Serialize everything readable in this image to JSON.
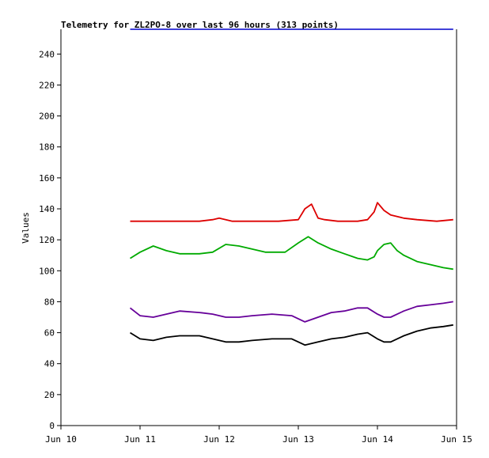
{
  "chart_data": {
    "type": "line",
    "title": "Telemetry for ZL2PO-8 over last 96 hours (313 points)",
    "xlabel": "",
    "ylabel": "Values",
    "ylim": [
      0,
      256
    ],
    "yticks": [
      0,
      20,
      40,
      60,
      80,
      100,
      120,
      140,
      160,
      180,
      200,
      220,
      240
    ],
    "xlim": [
      "2023-06-10",
      "2023-06-15"
    ],
    "xticks": [
      {
        "date": "2023-06-10",
        "label": "Jun 10"
      },
      {
        "date": "2023-06-11",
        "label": "Jun 11"
      },
      {
        "date": "2023-06-12",
        "label": "Jun 12"
      },
      {
        "date": "2023-06-13",
        "label": "Jun 13"
      },
      {
        "date": "2023-06-14",
        "label": "Jun 14"
      },
      {
        "date": "2023-06-15",
        "label": "Jun 15"
      }
    ],
    "grid": false,
    "top_line": {
      "color": "#0000cc",
      "value": 256,
      "x_start": "2023-06-10 21:00",
      "x_end": "2023-06-14 23:00"
    },
    "series": [
      {
        "color": "#dd0000",
        "points": [
          [
            "2023-06-10 21:00",
            132
          ],
          [
            "2023-06-11 00:00",
            132
          ],
          [
            "2023-06-11 06:00",
            132
          ],
          [
            "2023-06-11 12:00",
            132
          ],
          [
            "2023-06-11 18:00",
            132
          ],
          [
            "2023-06-11 22:00",
            133
          ],
          [
            "2023-06-12 00:00",
            134
          ],
          [
            "2023-06-12 04:00",
            132
          ],
          [
            "2023-06-12 12:00",
            132
          ],
          [
            "2023-06-12 18:00",
            132
          ],
          [
            "2023-06-13 00:00",
            133
          ],
          [
            "2023-06-13 02:00",
            140
          ],
          [
            "2023-06-13 04:00",
            143
          ],
          [
            "2023-06-13 06:00",
            134
          ],
          [
            "2023-06-13 08:00",
            133
          ],
          [
            "2023-06-13 12:00",
            132
          ],
          [
            "2023-06-13 18:00",
            132
          ],
          [
            "2023-06-13 21:00",
            133
          ],
          [
            "2023-06-13 23:00",
            138
          ],
          [
            "2023-06-14 00:00",
            144
          ],
          [
            "2023-06-14 02:00",
            139
          ],
          [
            "2023-06-14 04:00",
            136
          ],
          [
            "2023-06-14 08:00",
            134
          ],
          [
            "2023-06-14 12:00",
            133
          ],
          [
            "2023-06-14 18:00",
            132
          ],
          [
            "2023-06-14 23:00",
            133
          ]
        ]
      },
      {
        "color": "#00aa00",
        "points": [
          [
            "2023-06-10 21:00",
            108
          ],
          [
            "2023-06-11 00:00",
            112
          ],
          [
            "2023-06-11 04:00",
            116
          ],
          [
            "2023-06-11 08:00",
            113
          ],
          [
            "2023-06-11 12:00",
            111
          ],
          [
            "2023-06-11 18:00",
            111
          ],
          [
            "2023-06-11 22:00",
            112
          ],
          [
            "2023-06-12 02:00",
            117
          ],
          [
            "2023-06-12 06:00",
            116
          ],
          [
            "2023-06-12 10:00",
            114
          ],
          [
            "2023-06-12 14:00",
            112
          ],
          [
            "2023-06-12 20:00",
            112
          ],
          [
            "2023-06-13 00:00",
            118
          ],
          [
            "2023-06-13 03:00",
            122
          ],
          [
            "2023-06-13 06:00",
            118
          ],
          [
            "2023-06-13 10:00",
            114
          ],
          [
            "2023-06-13 14:00",
            111
          ],
          [
            "2023-06-13 18:00",
            108
          ],
          [
            "2023-06-13 21:00",
            107
          ],
          [
            "2023-06-13 23:00",
            109
          ],
          [
            "2023-06-14 00:00",
            113
          ],
          [
            "2023-06-14 02:00",
            117
          ],
          [
            "2023-06-14 04:00",
            118
          ],
          [
            "2023-06-14 06:00",
            113
          ],
          [
            "2023-06-14 08:00",
            110
          ],
          [
            "2023-06-14 12:00",
            106
          ],
          [
            "2023-06-14 16:00",
            104
          ],
          [
            "2023-06-14 20:00",
            102
          ],
          [
            "2023-06-14 23:00",
            101
          ]
        ]
      },
      {
        "color": "#660099",
        "points": [
          [
            "2023-06-10 21:00",
            76
          ],
          [
            "2023-06-11 00:00",
            71
          ],
          [
            "2023-06-11 04:00",
            70
          ],
          [
            "2023-06-11 08:00",
            72
          ],
          [
            "2023-06-11 12:00",
            74
          ],
          [
            "2023-06-11 18:00",
            73
          ],
          [
            "2023-06-11 22:00",
            72
          ],
          [
            "2023-06-12 02:00",
            70
          ],
          [
            "2023-06-12 06:00",
            70
          ],
          [
            "2023-06-12 10:00",
            71
          ],
          [
            "2023-06-12 16:00",
            72
          ],
          [
            "2023-06-12 22:00",
            71
          ],
          [
            "2023-06-13 02:00",
            67
          ],
          [
            "2023-06-13 06:00",
            70
          ],
          [
            "2023-06-13 10:00",
            73
          ],
          [
            "2023-06-13 14:00",
            74
          ],
          [
            "2023-06-13 18:00",
            76
          ],
          [
            "2023-06-13 21:00",
            76
          ],
          [
            "2023-06-14 00:00",
            72
          ],
          [
            "2023-06-14 02:00",
            70
          ],
          [
            "2023-06-14 04:00",
            70
          ],
          [
            "2023-06-14 08:00",
            74
          ],
          [
            "2023-06-14 12:00",
            77
          ],
          [
            "2023-06-14 16:00",
            78
          ],
          [
            "2023-06-14 20:00",
            79
          ],
          [
            "2023-06-14 23:00",
            80
          ]
        ]
      },
      {
        "color": "#000000",
        "points": [
          [
            "2023-06-10 21:00",
            60
          ],
          [
            "2023-06-11 00:00",
            56
          ],
          [
            "2023-06-11 04:00",
            55
          ],
          [
            "2023-06-11 08:00",
            57
          ],
          [
            "2023-06-11 12:00",
            58
          ],
          [
            "2023-06-11 18:00",
            58
          ],
          [
            "2023-06-11 22:00",
            56
          ],
          [
            "2023-06-12 02:00",
            54
          ],
          [
            "2023-06-12 06:00",
            54
          ],
          [
            "2023-06-12 10:00",
            55
          ],
          [
            "2023-06-12 16:00",
            56
          ],
          [
            "2023-06-12 22:00",
            56
          ],
          [
            "2023-06-13 02:00",
            52
          ],
          [
            "2023-06-13 06:00",
            54
          ],
          [
            "2023-06-13 10:00",
            56
          ],
          [
            "2023-06-13 14:00",
            57
          ],
          [
            "2023-06-13 18:00",
            59
          ],
          [
            "2023-06-13 21:00",
            60
          ],
          [
            "2023-06-14 00:00",
            56
          ],
          [
            "2023-06-14 02:00",
            54
          ],
          [
            "2023-06-14 04:00",
            54
          ],
          [
            "2023-06-14 08:00",
            58
          ],
          [
            "2023-06-14 12:00",
            61
          ],
          [
            "2023-06-14 16:00",
            63
          ],
          [
            "2023-06-14 20:00",
            64
          ],
          [
            "2023-06-14 23:00",
            65
          ]
        ]
      }
    ]
  }
}
